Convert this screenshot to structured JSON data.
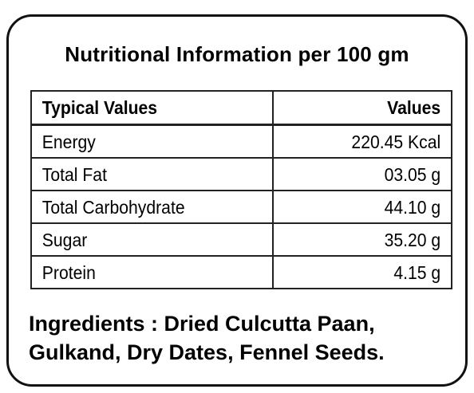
{
  "title": "Nutritional Information per 100 gm",
  "table": {
    "headers": [
      "Typical Values",
      "Values"
    ],
    "rows": [
      {
        "name": "Energy",
        "value": "220.45 Kcal"
      },
      {
        "name": "Total Fat",
        "value": "03.05 g"
      },
      {
        "name": "Total Carbohydrate",
        "value": "44.10 g"
      },
      {
        "name": "Sugar",
        "value": "35.20 g"
      },
      {
        "name": "Protein",
        "value": "4.15 g"
      }
    ]
  },
  "ingredients": {
    "line1": "Ingredients : Dried Culcutta Paan,",
    "line2": "Gulkand, Dry Dates, Fennel Seeds."
  }
}
